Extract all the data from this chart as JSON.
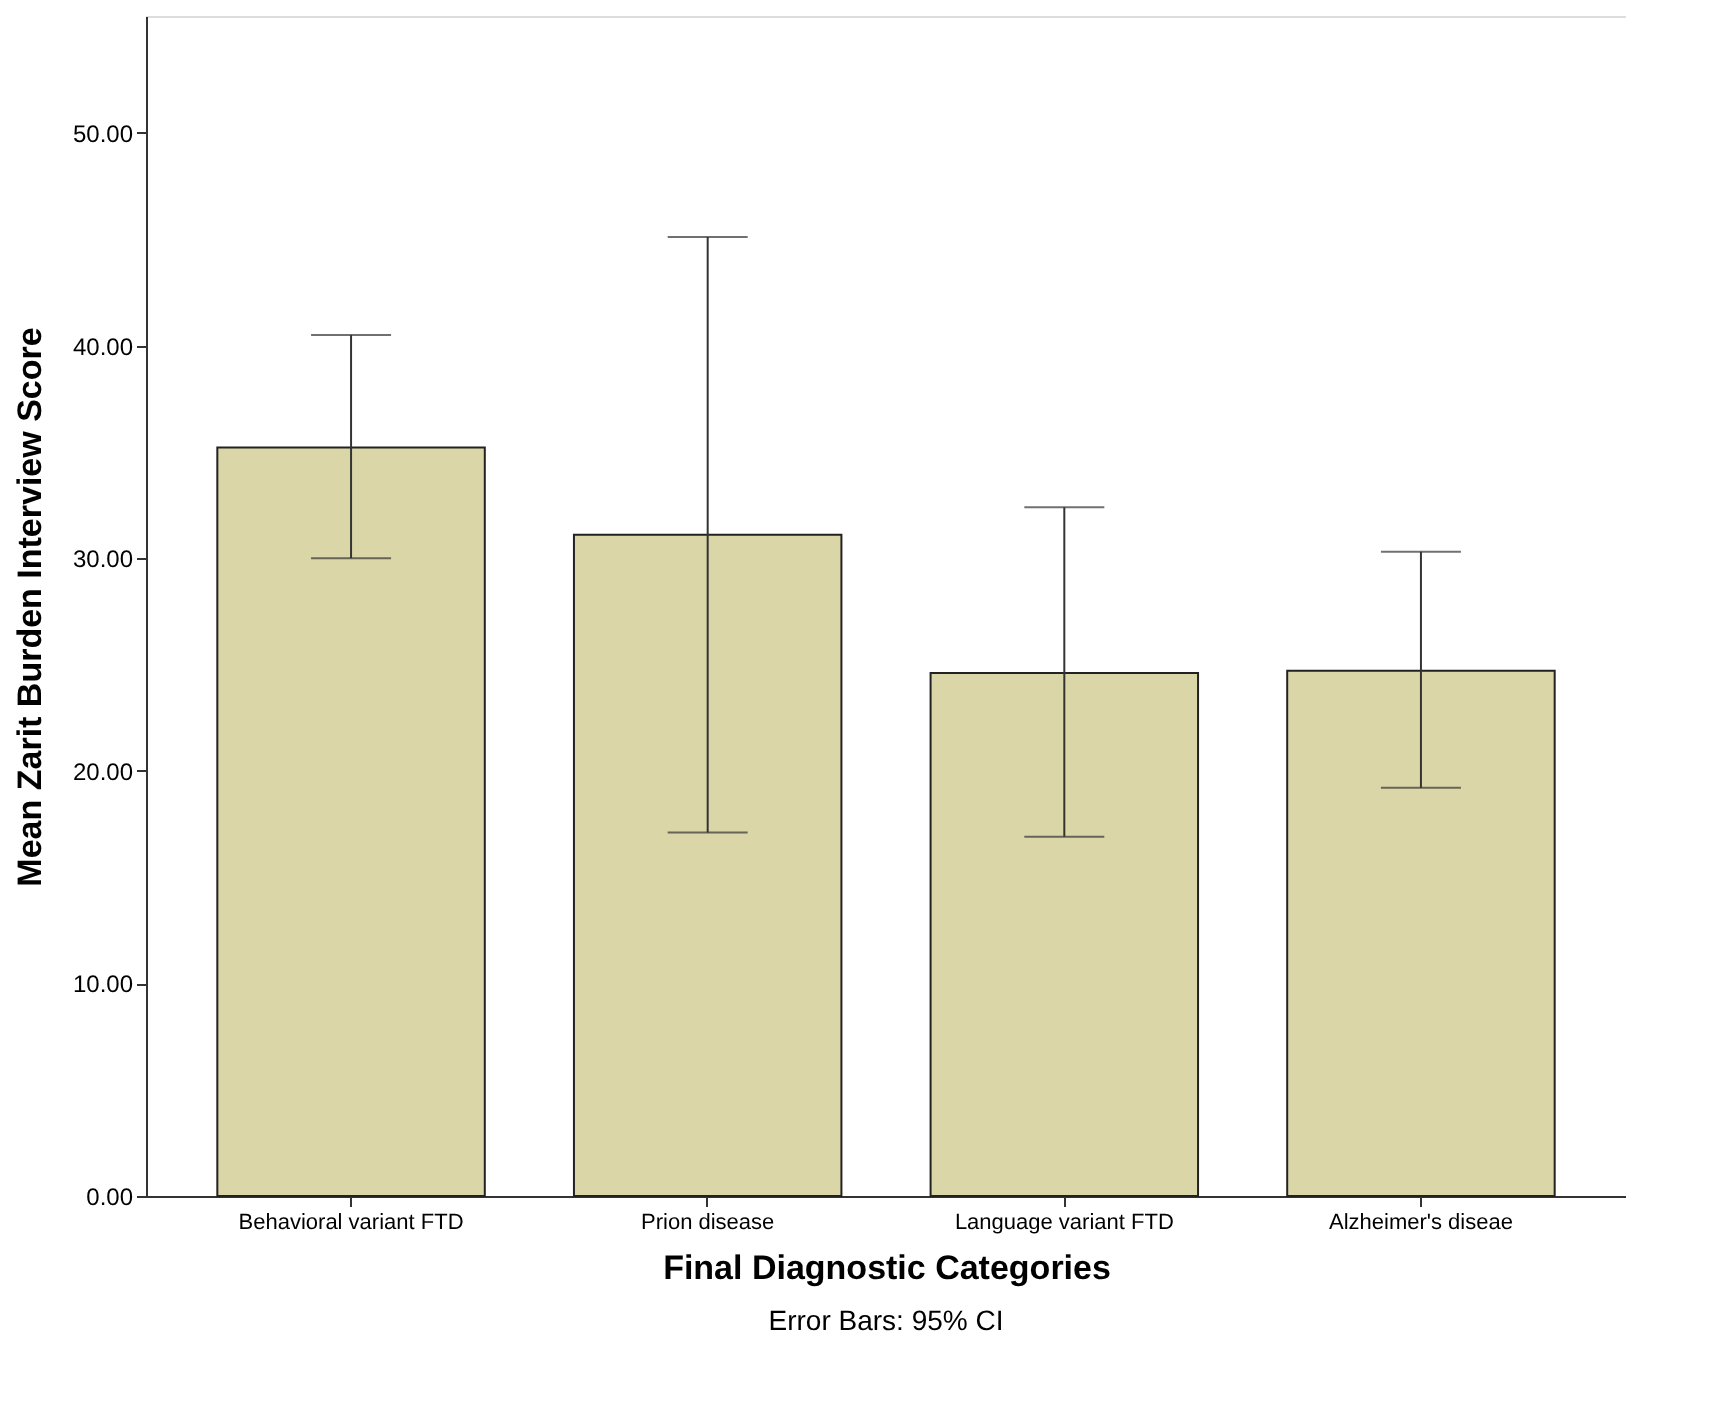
{
  "chart_data": {
    "type": "bar",
    "categories": [
      "Behavioral variant FTD",
      "Prion disease",
      "Language variant FTD",
      "Alzheimer's diseae"
    ],
    "values": [
      35.2,
      31.1,
      24.6,
      24.7
    ],
    "errors": [
      [
        30.0,
        40.5
      ],
      [
        17.1,
        45.1
      ],
      [
        16.9,
        32.4
      ],
      [
        19.2,
        30.3
      ]
    ],
    "color": "#dbd6a8",
    "xlabel": "Final Diagnostic Categories",
    "ylabel": "Mean Zarit Burden Interview Score",
    "ylim": [
      0,
      55.5
    ],
    "yticks": [
      {
        "value": 0,
        "label": "0.00"
      },
      {
        "value": 10,
        "label": "10.00"
      },
      {
        "value": 20,
        "label": "20.00"
      },
      {
        "value": 30,
        "label": "30.00"
      },
      {
        "value": 40,
        "label": "40.00"
      },
      {
        "value": 50,
        "label": "50.00"
      }
    ],
    "annotations": [
      "Error Bars: 95% CI"
    ],
    "grid": false
  }
}
